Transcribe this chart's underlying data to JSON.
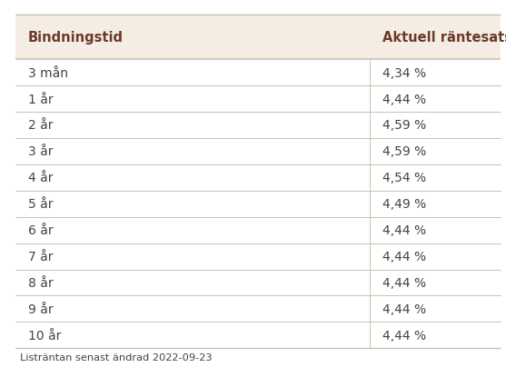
{
  "col1_header": "Bindningstid",
  "col2_header": "Aktuell räntesats",
  "rows": [
    [
      "3 mån",
      "4,34 %"
    ],
    [
      "1 år",
      "4,44 %"
    ],
    [
      "2 år",
      "4,59 %"
    ],
    [
      "3 år",
      "4,59 %"
    ],
    [
      "4 år",
      "4,54 %"
    ],
    [
      "5 år",
      "4,49 %"
    ],
    [
      "6 år",
      "4,44 %"
    ],
    [
      "7 år",
      "4,44 %"
    ],
    [
      "8 år",
      "4,44 %"
    ],
    [
      "9 år",
      "4,44 %"
    ],
    [
      "10 år",
      "4,44 %"
    ]
  ],
  "footer": "Listräntan senast ändrad 2022-09-23",
  "bg_color": "#ffffff",
  "header_bg_color": "#f5ede3",
  "header_text_color": "#6b3a2a",
  "row_text_color": "#444444",
  "row_line_color": "#ccbfb0",
  "col_split": 0.7,
  "header_font_size": 10.5,
  "row_font_size": 10,
  "footer_font_size": 8.2
}
